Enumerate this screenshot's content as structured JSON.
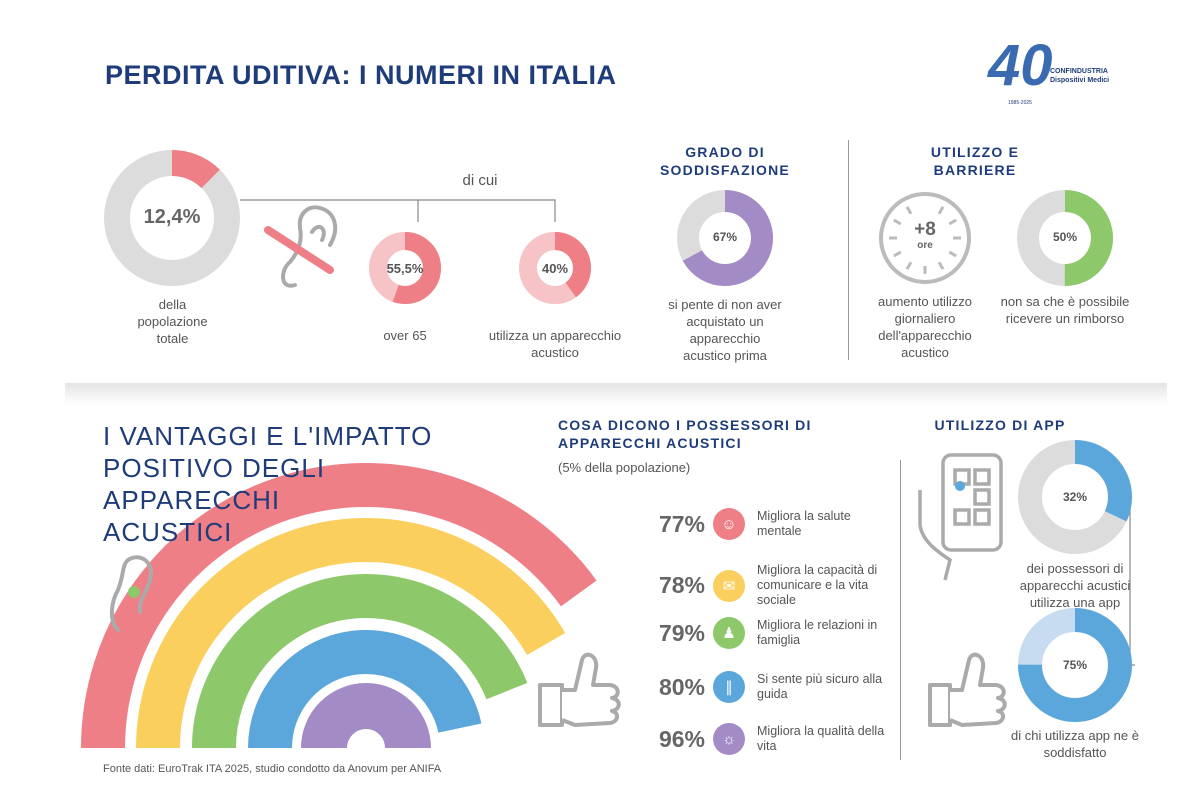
{
  "title": "PERDITA UDITIVA: I NUMERI IN ITALIA",
  "logo": {
    "text": "40",
    "brand": "CONFINDUSTRIA",
    "sub": "Dispositivi Medici",
    "years": "1985-2025"
  },
  "top": {
    "di_cui": "di cui",
    "total": {
      "value": "12,4%",
      "caption": "della popolazione totale"
    },
    "over65": {
      "value": "55,5%",
      "caption": "over 65"
    },
    "device": {
      "value": "40%",
      "caption": "utilizza un apparecchio acustico"
    },
    "satisfaction": {
      "header": "GRADO DI SODDISFAZIONE",
      "value": "67%",
      "caption": "si pente di non aver acquistato un apparecchio acustico prima"
    },
    "usage": {
      "header": "UTILIZZO E BARRIERE",
      "clock_value": "+8",
      "clock_unit": "ore",
      "clock_caption": "aumento utilizzo giornaliero dell'apparecchio acustico",
      "refund_value": "50%",
      "refund_caption": "non sa che è possibile ricevere un rimborso"
    }
  },
  "bottom": {
    "heading": [
      "I VANTAGGI E L'IMPATTO",
      "POSITIVO DEGLI",
      "APPARECCHI",
      "ACUSTICI"
    ],
    "owners_header": "COSA DICONO I POSSESSORI DI APPARECCHI ACUSTICI",
    "owners_sub": "(5% della popolazione)",
    "benefits": [
      {
        "value": "77%",
        "text": "Migliora la salute mentale",
        "color": "#ee7f87",
        "icon": "head-icon"
      },
      {
        "value": "78%",
        "text": "Migliora la capacità di comunicare e la vita sociale",
        "color": "#fbcf5e",
        "icon": "chat-icon"
      },
      {
        "value": "79%",
        "text": "Migliora le relazioni in famiglia",
        "color": "#8dc86a",
        "icon": "family-icon"
      },
      {
        "value": "80%",
        "text": "Si sente più sicuro alla guida",
        "color": "#5ba7dc",
        "icon": "road-icon"
      },
      {
        "value": "96%",
        "text": "Migliora la qualità della vita",
        "color": "#a38cc6",
        "icon": "sun-icon"
      }
    ],
    "app": {
      "header": "UTILIZZO DI APP",
      "use_value": "32%",
      "use_caption": "dei possessori di apparecchi acustici utilizza una app",
      "sat_value": "75%",
      "sat_caption": "di chi utilizza app ne è soddisfatto"
    },
    "source": "Fonte dati: EuroTrak ITA 2025, studio condotto da Anovum per ANIFA"
  },
  "chart_data": {
    "type": "pie",
    "donuts": [
      {
        "name": "popolazione totale",
        "value": 12.4,
        "color": "#ee7f87",
        "rest": "#dcdcdc"
      },
      {
        "name": "over 65",
        "value": 55.5,
        "color": "#ee7f87",
        "rest": "#f6c3c6"
      },
      {
        "name": "utilizza un apparecchio",
        "value": 40,
        "color": "#ee7f87",
        "rest": "#f6c3c6"
      },
      {
        "name": "soddisfazione",
        "value": 67,
        "color": "#a38cc6",
        "rest": "#dcdcdc"
      },
      {
        "name": "rimborso",
        "value": 50,
        "color": "#8dc86a",
        "rest": "#dcdcdc"
      },
      {
        "name": "utilizza app",
        "value": 32,
        "color": "#5ba7dc",
        "rest": "#dcdcdc"
      },
      {
        "name": "soddisfatto app",
        "value": 75,
        "color": "#5ba7dc",
        "rest": "#c7dcf0"
      }
    ]
  }
}
